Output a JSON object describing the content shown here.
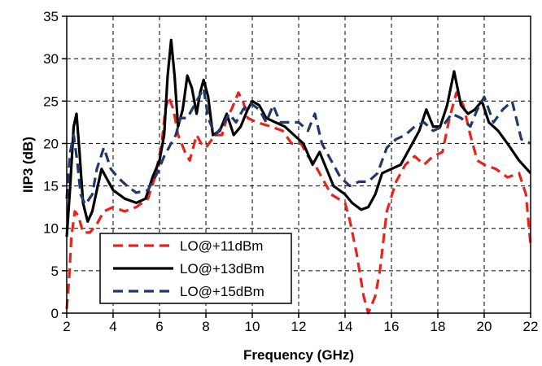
{
  "chart_data": {
    "type": "line",
    "xlabel": "Frequency (GHz)",
    "ylabel": "IIP3 (dB)",
    "xlim": [
      2,
      22
    ],
    "ylim": [
      0,
      35
    ],
    "xticks": [
      2,
      4,
      6,
      8,
      10,
      12,
      14,
      16,
      18,
      20,
      22
    ],
    "yticks": [
      0,
      5,
      10,
      15,
      20,
      25,
      30,
      35
    ],
    "grid": true,
    "legend_position": "bottom-left",
    "series": [
      {
        "name": "LO@+11dBm",
        "color": "#e8231e",
        "dash": "dashed",
        "points": [
          [
            2.0,
            0.5
          ],
          [
            2.1,
            4
          ],
          [
            2.2,
            9
          ],
          [
            2.35,
            12
          ],
          [
            2.5,
            11.5
          ],
          [
            2.7,
            9.5
          ],
          [
            3.0,
            9.5
          ],
          [
            3.3,
            10.5
          ],
          [
            3.6,
            12
          ],
          [
            4.0,
            12.5
          ],
          [
            4.5,
            12
          ],
          [
            5.0,
            12.5
          ],
          [
            5.5,
            13.5
          ],
          [
            5.8,
            16
          ],
          [
            6.1,
            20
          ],
          [
            6.25,
            24
          ],
          [
            6.4,
            25.5
          ],
          [
            6.6,
            24
          ],
          [
            6.8,
            21
          ],
          [
            7.1,
            19
          ],
          [
            7.3,
            18
          ],
          [
            7.6,
            21
          ],
          [
            7.8,
            20
          ],
          [
            8.0,
            19.5
          ],
          [
            8.4,
            21
          ],
          [
            8.7,
            21
          ],
          [
            8.9,
            23
          ],
          [
            9.1,
            24
          ],
          [
            9.4,
            26
          ],
          [
            9.6,
            25
          ],
          [
            9.8,
            23
          ],
          [
            10.2,
            22.5
          ],
          [
            10.8,
            22
          ],
          [
            11.3,
            21.5
          ],
          [
            11.7,
            20
          ],
          [
            12.1,
            20
          ],
          [
            12.4,
            18.5
          ],
          [
            12.7,
            17.5
          ],
          [
            13.0,
            16
          ],
          [
            13.4,
            14
          ],
          [
            14.0,
            13
          ],
          [
            14.2,
            11
          ],
          [
            14.5,
            7
          ],
          [
            14.8,
            2
          ],
          [
            15.0,
            0
          ],
          [
            15.3,
            2
          ],
          [
            15.5,
            5
          ],
          [
            15.8,
            12
          ],
          [
            16.2,
            15.5
          ],
          [
            16.6,
            17.5
          ],
          [
            17.0,
            18.5
          ],
          [
            17.4,
            17.5
          ],
          [
            17.8,
            18.5
          ],
          [
            18.2,
            19
          ],
          [
            18.5,
            23
          ],
          [
            18.8,
            26
          ],
          [
            19.1,
            24.5
          ],
          [
            19.4,
            21
          ],
          [
            19.7,
            18
          ],
          [
            20.0,
            17.5
          ],
          [
            20.5,
            17
          ],
          [
            21.0,
            16
          ],
          [
            21.5,
            16.5
          ],
          [
            21.8,
            14
          ],
          [
            22.0,
            8
          ]
        ]
      },
      {
        "name": "LO@+13dBm",
        "color": "#000000",
        "dash": "solid",
        "points": [
          [
            2.0,
            9
          ],
          [
            2.15,
            15
          ],
          [
            2.3,
            22
          ],
          [
            2.42,
            23.5
          ],
          [
            2.55,
            19
          ],
          [
            2.7,
            13
          ],
          [
            2.9,
            10.8
          ],
          [
            3.1,
            12
          ],
          [
            3.3,
            14.5
          ],
          [
            3.5,
            17
          ],
          [
            3.7,
            16
          ],
          [
            4.0,
            14.5
          ],
          [
            4.5,
            13.5
          ],
          [
            5.0,
            13
          ],
          [
            5.4,
            13.5
          ],
          [
            5.7,
            16
          ],
          [
            6.0,
            18
          ],
          [
            6.2,
            21
          ],
          [
            6.35,
            28
          ],
          [
            6.5,
            32.2
          ],
          [
            6.65,
            28
          ],
          [
            6.8,
            22
          ],
          [
            7.0,
            24
          ],
          [
            7.2,
            28
          ],
          [
            7.4,
            26.5
          ],
          [
            7.6,
            23.5
          ],
          [
            7.75,
            26
          ],
          [
            7.9,
            27.5
          ],
          [
            8.1,
            25.5
          ],
          [
            8.3,
            21
          ],
          [
            8.6,
            21.5
          ],
          [
            8.9,
            23.5
          ],
          [
            9.2,
            21
          ],
          [
            9.5,
            22
          ],
          [
            9.8,
            24
          ],
          [
            10.0,
            25
          ],
          [
            10.3,
            24.5
          ],
          [
            10.6,
            23
          ],
          [
            11.0,
            22.5
          ],
          [
            11.4,
            22
          ],
          [
            11.8,
            21
          ],
          [
            12.2,
            20
          ],
          [
            12.6,
            17.5
          ],
          [
            12.9,
            19
          ],
          [
            13.2,
            17
          ],
          [
            13.5,
            15
          ],
          [
            14.0,
            14
          ],
          [
            14.3,
            13
          ],
          [
            14.7,
            12.2
          ],
          [
            15.0,
            12.5
          ],
          [
            15.3,
            14
          ],
          [
            15.6,
            16.5
          ],
          [
            16.0,
            17
          ],
          [
            16.4,
            17.5
          ],
          [
            16.8,
            19.5
          ],
          [
            17.2,
            21.5
          ],
          [
            17.5,
            24
          ],
          [
            17.8,
            22
          ],
          [
            18.1,
            22
          ],
          [
            18.4,
            24.5
          ],
          [
            18.7,
            28.5
          ],
          [
            19.0,
            24.5
          ],
          [
            19.3,
            23.5
          ],
          [
            19.6,
            24
          ],
          [
            19.9,
            25
          ],
          [
            20.2,
            22.5
          ],
          [
            20.6,
            21.5
          ],
          [
            21.0,
            20
          ],
          [
            21.5,
            18
          ],
          [
            22.0,
            16.5
          ]
        ]
      },
      {
        "name": "LO@+15dBm",
        "color": "#1f3a68",
        "dash": "dashed",
        "points": [
          [
            2.0,
            13.5
          ],
          [
            2.15,
            19
          ],
          [
            2.3,
            21
          ],
          [
            2.45,
            18
          ],
          [
            2.6,
            14
          ],
          [
            2.8,
            12.8
          ],
          [
            3.1,
            14
          ],
          [
            3.3,
            17
          ],
          [
            3.6,
            19.5
          ],
          [
            3.9,
            17
          ],
          [
            4.2,
            16
          ],
          [
            4.6,
            15
          ],
          [
            5.0,
            14.2
          ],
          [
            5.5,
            14.5
          ],
          [
            5.9,
            16.5
          ],
          [
            6.2,
            18.5
          ],
          [
            6.5,
            20
          ],
          [
            6.7,
            21
          ],
          [
            6.9,
            23
          ],
          [
            7.2,
            23
          ],
          [
            7.5,
            24.5
          ],
          [
            7.7,
            25.5
          ],
          [
            7.9,
            26.5
          ],
          [
            8.1,
            23
          ],
          [
            8.4,
            21
          ],
          [
            8.7,
            22
          ],
          [
            9.0,
            23.5
          ],
          [
            9.3,
            22.5
          ],
          [
            9.6,
            24
          ],
          [
            9.9,
            24.8
          ],
          [
            10.3,
            24
          ],
          [
            10.6,
            22.5
          ],
          [
            10.9,
            24.5
          ],
          [
            11.2,
            22.5
          ],
          [
            11.6,
            22.5
          ],
          [
            12.0,
            22.5
          ],
          [
            12.4,
            21.5
          ],
          [
            12.7,
            23.5
          ],
          [
            13.0,
            20
          ],
          [
            13.4,
            18
          ],
          [
            13.8,
            16
          ],
          [
            14.2,
            15
          ],
          [
            14.6,
            15.5
          ],
          [
            15.0,
            15.5
          ],
          [
            15.4,
            16.5
          ],
          [
            15.8,
            19.5
          ],
          [
            16.2,
            20.5
          ],
          [
            16.6,
            21
          ],
          [
            17.0,
            22
          ],
          [
            17.4,
            22.5
          ],
          [
            17.8,
            21.5
          ],
          [
            18.2,
            22
          ],
          [
            18.6,
            23.5
          ],
          [
            19.0,
            23
          ],
          [
            19.4,
            22
          ],
          [
            19.7,
            24
          ],
          [
            20.0,
            25.5
          ],
          [
            20.4,
            22.5
          ],
          [
            20.8,
            24
          ],
          [
            21.2,
            25
          ],
          [
            21.6,
            20.5
          ],
          [
            22.0,
            20
          ]
        ]
      }
    ]
  }
}
